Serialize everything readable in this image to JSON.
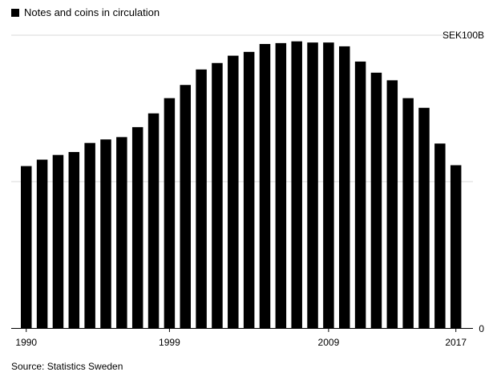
{
  "chart_data": {
    "type": "bar",
    "legend": "Notes and coins in circulation",
    "unit_label": "SEK100B",
    "source": "Source: Statistics Sweden",
    "y_ticks": [
      0,
      50,
      100
    ],
    "y_tick_labels": [
      "0",
      "",
      "SEK100B"
    ],
    "ylim": [
      0,
      100
    ],
    "grid": true,
    "x_tick_labels": [
      "1990",
      "1999",
      "2009",
      "2017"
    ],
    "categories": [
      "1990",
      "1991",
      "1992",
      "1993",
      "1994",
      "1995",
      "1996",
      "1997",
      "1998",
      "1999",
      "2000",
      "2001",
      "2002",
      "2003",
      "2004",
      "2005",
      "2006",
      "2007",
      "2008",
      "2009",
      "2010",
      "2011",
      "2012",
      "2013",
      "2014",
      "2015",
      "2016",
      "2017"
    ],
    "values": [
      55.3,
      57.5,
      59.1,
      60.1,
      63.2,
      64.4,
      65.2,
      68.6,
      73.3,
      78.5,
      83.0,
      88.3,
      90.5,
      93.0,
      94.3,
      97.0,
      97.3,
      97.9,
      97.5,
      97.5,
      96.2,
      91.0,
      87.2,
      84.6,
      78.5,
      75.2,
      63.0,
      55.6
    ]
  }
}
